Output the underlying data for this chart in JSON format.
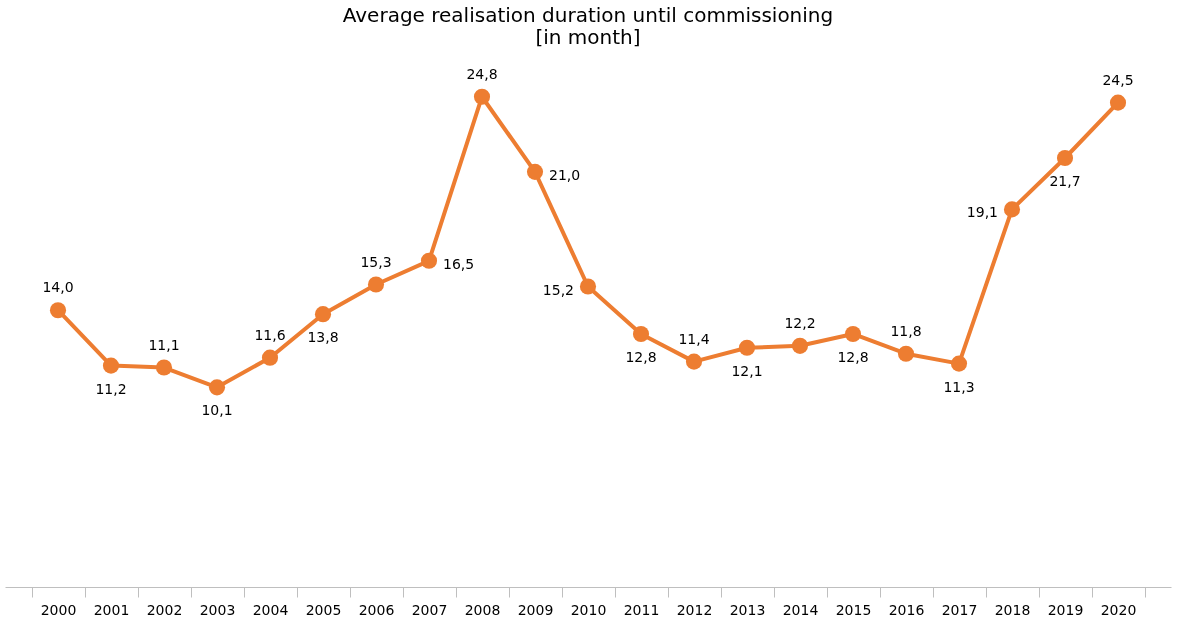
{
  "chart_data": {
    "type": "line",
    "title": [
      "Average realisation duration until commissioning",
      "[in month]"
    ],
    "categories": [
      "2000",
      "2001",
      "2002",
      "2003",
      "2004",
      "2005",
      "2006",
      "2007",
      "2008",
      "2009",
      "2010",
      "2011",
      "2012",
      "2013",
      "2014",
      "2015",
      "2016",
      "2017",
      "2018",
      "2019",
      "2020"
    ],
    "series": [
      {
        "color": "#ed7d31",
        "values": [
          14.0,
          11.2,
          11.1,
          10.1,
          11.6,
          13.8,
          15.3,
          16.5,
          24.8,
          21.0,
          15.2,
          12.8,
          11.4,
          12.1,
          12.2,
          12.8,
          11.8,
          11.3,
          19.1,
          21.7,
          24.5
        ],
        "value_labels": [
          "14,0",
          "11,2",
          "11,1",
          "10,1",
          "11,6",
          "13,8",
          "15,3",
          "16,5",
          "24,8",
          "21,0",
          "15,2",
          "12,8",
          "11,4",
          "12,1",
          "12,2",
          "12,8",
          "11,8",
          "11,3",
          "19,1",
          "21,7",
          "24,5"
        ]
      }
    ],
    "marker": "circle",
    "line_style": "solid",
    "grid": false,
    "tick_labels": "x"
  }
}
